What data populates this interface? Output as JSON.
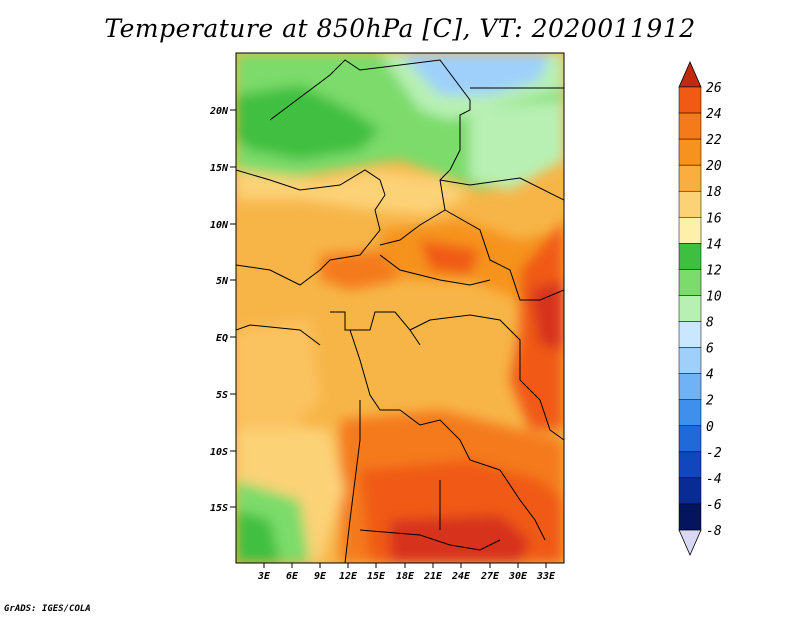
{
  "title": "Temperature at 850hPa [C], VT: 2020011912",
  "credit": "GrADS: IGES/COLA",
  "map": {
    "lat_ticks": [
      "20N",
      "15N",
      "10N",
      "5N",
      "EQ",
      "5S",
      "10S",
      "15S"
    ],
    "lon_ticks": [
      "3E",
      "6E",
      "9E",
      "12E",
      "15E",
      "18E",
      "21E",
      "24E",
      "27E",
      "30E",
      "33E"
    ]
  },
  "colorbar": {
    "labels": [
      "26",
      "24",
      "22",
      "20",
      "18",
      "16",
      "14",
      "12",
      "10",
      "8",
      "6",
      "4",
      "2",
      "0",
      "-2",
      "-4",
      "-6",
      "-8"
    ],
    "colors": [
      "#d7301f",
      "#f05a14",
      "#f47a1a",
      "#f6931e",
      "#f9ae3f",
      "#fcd277",
      "#fef0a8",
      "#3fbf3f",
      "#7bdb6b",
      "#b8f0b4",
      "#c9e8ff",
      "#9fd0fb",
      "#6fb2f5",
      "#3e90ec",
      "#2069d8",
      "#1147bd",
      "#082c94",
      "#04145e"
    ],
    "upper_cap_color": "#c22a10",
    "lower_cap_color": "#d9d9f5"
  }
}
